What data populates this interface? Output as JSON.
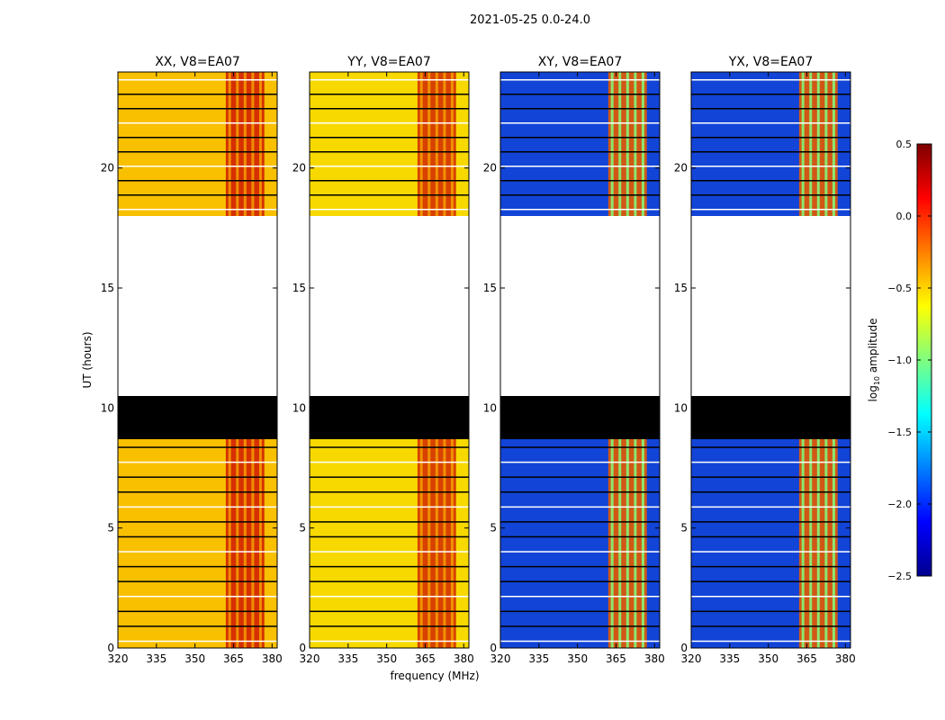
{
  "chart_data": {
    "type": "heatmap",
    "title": "2021-05-25 0.0-24.0",
    "xlabel": "frequency (MHz)",
    "ylabel": "UT (hours)",
    "xlim": [
      320,
      382
    ],
    "ylim": [
      0,
      24
    ],
    "x_ticks": [
      "320",
      "335",
      "350",
      "365",
      "380"
    ],
    "x_tick_values": [
      320,
      335,
      350,
      365,
      380
    ],
    "y_ticks": [
      "0",
      "5",
      "10",
      "15",
      "20"
    ],
    "y_tick_values": [
      0,
      5,
      10,
      15,
      20
    ],
    "panels": [
      {
        "title": "XX, V8=EA07",
        "product": "XX",
        "background": "#f9c000",
        "band": "#d12000"
      },
      {
        "title": "YY, V8=EA07",
        "product": "YY",
        "background": "#f7d900",
        "band": "#d43000"
      },
      {
        "title": "XY, V8=EA07",
        "product": "XY",
        "background": "#1244d8",
        "band": "#e65a00"
      },
      {
        "title": "YX, V8=EA07",
        "product": "YX",
        "background": "#1244d8",
        "band": "#e65a00"
      }
    ],
    "bright_band_mhz": [
      362,
      377
    ],
    "no_data_hours": [
      10.5,
      18.0
    ],
    "flagged_hours": [
      8.7,
      10.5
    ],
    "colorbar": {
      "label": "log10 amplitude",
      "label_main": "log",
      "label_sub": "10",
      "label_rest": " amplitude",
      "range": [
        -2.5,
        0.5
      ],
      "tick_values": [
        -2.5,
        -2.0,
        -1.5,
        -1.0,
        -0.5,
        0.0,
        0.5
      ],
      "ticks": [
        "−2.5",
        "−2.0",
        "−1.5",
        "−1.0",
        "−0.5",
        "0.0",
        "0.5"
      ]
    }
  }
}
